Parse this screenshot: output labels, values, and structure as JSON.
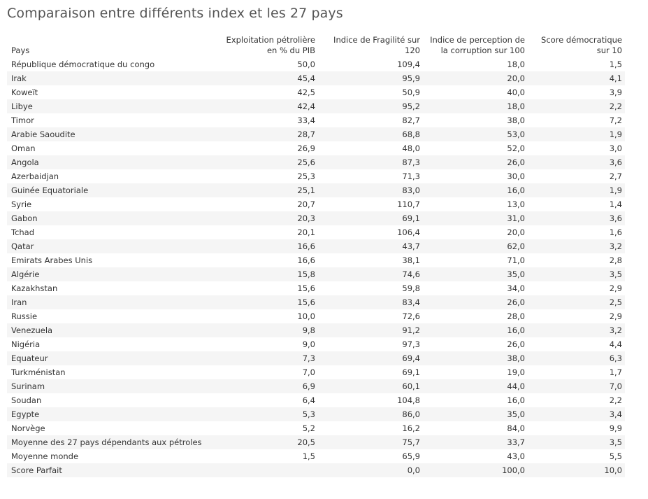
{
  "title": "Comparaison entre différents index et les 27 pays",
  "chart_data": {
    "type": "table",
    "title": "Comparaison entre différents index et les 27 pays",
    "columns": [
      "Pays",
      "Exploitation pétrolière en % du PIB",
      "Indice de Fragilité sur 120",
      "Indice de perception de la corruption sur 100",
      "Score démocratique sur 10"
    ],
    "rows": [
      [
        "République démocratique du congo",
        "50,0",
        "109,4",
        "18,0",
        "1,5"
      ],
      [
        "Irak",
        "45,4",
        "95,9",
        "20,0",
        "4,1"
      ],
      [
        "Koweït",
        "42,5",
        "50,9",
        "40,0",
        "3,9"
      ],
      [
        "Libye",
        "42,4",
        "95,2",
        "18,0",
        "2,2"
      ],
      [
        "Timor",
        "33,4",
        "82,7",
        "38,0",
        "7,2"
      ],
      [
        "Arabie Saoudite",
        "28,7",
        "68,8",
        "53,0",
        "1,9"
      ],
      [
        "Oman",
        "26,9",
        "48,0",
        "52,0",
        "3,0"
      ],
      [
        "Angola",
        "25,6",
        "87,3",
        "26,0",
        "3,6"
      ],
      [
        "Azerbaidjan",
        "25,3",
        "71,3",
        "30,0",
        "2,7"
      ],
      [
        "Guinée Equatoriale",
        "25,1",
        "83,0",
        "16,0",
        "1,9"
      ],
      [
        "Syrie",
        "20,7",
        "110,7",
        "13,0",
        "1,4"
      ],
      [
        "Gabon",
        "20,3",
        "69,1",
        "31,0",
        "3,6"
      ],
      [
        "Tchad",
        "20,1",
        "106,4",
        "20,0",
        "1,6"
      ],
      [
        "Qatar",
        "16,6",
        "43,7",
        "62,0",
        "3,2"
      ],
      [
        "Emirats Arabes Unis",
        "16,6",
        "38,1",
        "71,0",
        "2,8"
      ],
      [
        "Algérie",
        "15,8",
        "74,6",
        "35,0",
        "3,5"
      ],
      [
        "Kazakhstan",
        "15,6",
        "59,8",
        "34,0",
        "2,9"
      ],
      [
        "Iran",
        "15,6",
        "83,4",
        "26,0",
        "2,5"
      ],
      [
        "Russie",
        "10,0",
        "72,6",
        "28,0",
        "2,9"
      ],
      [
        "Venezuela",
        "9,8",
        "91,2",
        "16,0",
        "3,2"
      ],
      [
        "Nigéria",
        "9,0",
        "97,3",
        "26,0",
        "4,4"
      ],
      [
        "Equateur",
        "7,3",
        "69,4",
        "38,0",
        "6,3"
      ],
      [
        "Turkménistan",
        "7,0",
        "69,1",
        "19,0",
        "1,7"
      ],
      [
        "Surinam",
        "6,9",
        "60,1",
        "44,0",
        "7,0"
      ],
      [
        "Soudan",
        "6,4",
        "104,8",
        "16,0",
        "2,2"
      ],
      [
        "Egypte",
        "5,3",
        "86,0",
        "35,0",
        "3,4"
      ],
      [
        "Norvège",
        "5,2",
        "16,2",
        "84,0",
        "9,9"
      ],
      [
        "Moyenne des 27 pays dépendants aux pétroles",
        "20,5",
        "75,7",
        "33,7",
        "3,5"
      ],
      [
        "Moyenne monde",
        "1,5",
        "65,9",
        "43,0",
        "5,5"
      ],
      [
        "Score Parfait",
        "",
        "0,0",
        "100,0",
        "10,0"
      ]
    ]
  }
}
